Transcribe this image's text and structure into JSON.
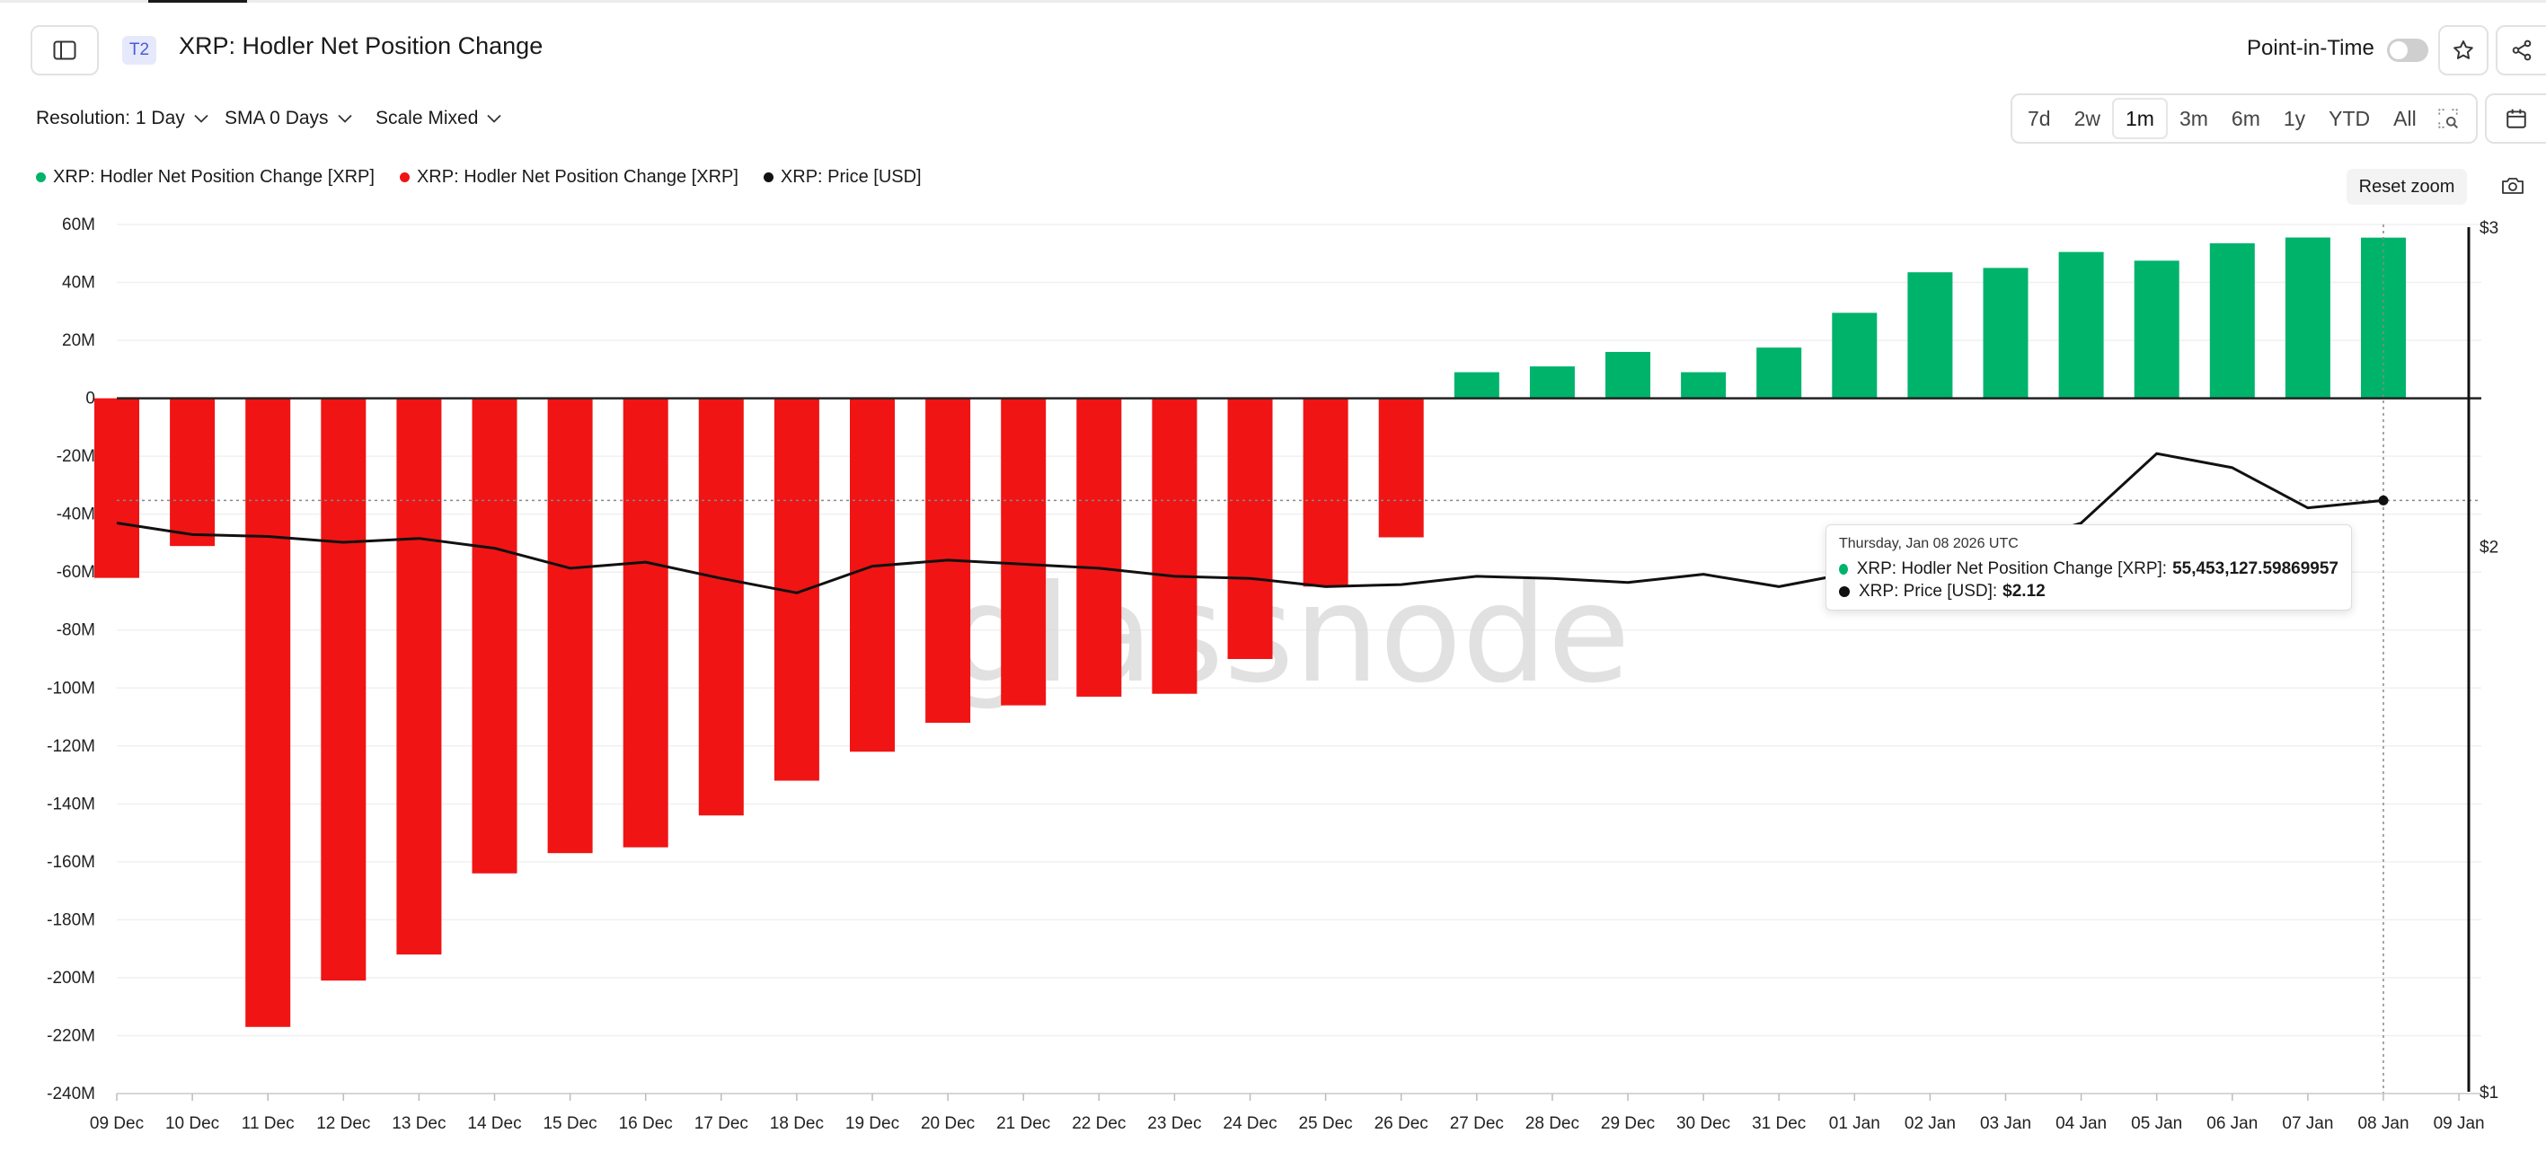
{
  "header": {
    "tier": "T2",
    "title": "XRP: Hodler Net Position Change",
    "point_in_time_label": "Point-in-Time"
  },
  "toolbar": {
    "resolution_label": "Resolution: 1 Day",
    "sma_label": "SMA 0 Days",
    "scale_label": "Scale Mixed",
    "ranges": [
      "7d",
      "2w",
      "1m",
      "3m",
      "6m",
      "1y",
      "YTD",
      "All"
    ],
    "active_range": "1m",
    "reset_zoom_label": "Reset zoom"
  },
  "colors": {
    "positive": "#00b36b",
    "negative": "#f01414",
    "price": "#111111"
  },
  "icons": [
    "sidebar-toggle-icon",
    "star-icon",
    "share-icon",
    "calendar-icon",
    "zoom-select-icon",
    "camera-icon",
    "chevron-down-icon"
  ],
  "tooltip": {
    "date": "Thursday, Jan 08 2026 UTC",
    "series1_label": "XRP: Hodler Net Position Change [XRP]:",
    "series1_value": "55,453,127.59869957",
    "series2_label": "XRP: Price [USD]:",
    "series2_value": "$2.12"
  },
  "chart_data": {
    "type": "bar",
    "watermark": "glassnode",
    "categories": [
      "09 Dec",
      "10 Dec",
      "11 Dec",
      "12 Dec",
      "13 Dec",
      "14 Dec",
      "15 Dec",
      "16 Dec",
      "17 Dec",
      "18 Dec",
      "19 Dec",
      "20 Dec",
      "21 Dec",
      "22 Dec",
      "23 Dec",
      "24 Dec",
      "25 Dec",
      "26 Dec",
      "27 Dec",
      "28 Dec",
      "29 Dec",
      "30 Dec",
      "31 Dec",
      "01 Jan",
      "02 Jan",
      "03 Jan",
      "04 Jan",
      "05 Jan",
      "06 Jan",
      "07 Jan",
      "08 Jan"
    ],
    "x_tick_labels": [
      "09 Dec",
      "10 Dec",
      "11 Dec",
      "12 Dec",
      "13 Dec",
      "14 Dec",
      "15 Dec",
      "16 Dec",
      "17 Dec",
      "18 Dec",
      "19 Dec",
      "20 Dec",
      "21 Dec",
      "22 Dec",
      "23 Dec",
      "24 Dec",
      "25 Dec",
      "26 Dec",
      "27 Dec",
      "28 Dec",
      "29 Dec",
      "30 Dec",
      "31 Dec",
      "01 Jan",
      "02 Jan",
      "03 Jan",
      "04 Jan",
      "05 Jan",
      "06 Jan",
      "07 Jan",
      "08 Jan",
      "09 Jan"
    ],
    "series": [
      {
        "name": "XRP: Hodler Net Position Change [XRP]",
        "color": "#00b36b",
        "axis": "left",
        "values": [
          null,
          null,
          null,
          null,
          null,
          null,
          null,
          null,
          null,
          null,
          null,
          null,
          null,
          null,
          null,
          null,
          null,
          null,
          9000000,
          11000000,
          16000000,
          9000000,
          17500000,
          29500000,
          43500000,
          45000000,
          50500000,
          47500000,
          53500000,
          55500000,
          55453127.59869957
        ]
      },
      {
        "name": "XRP: Hodler Net Position Change [XRP]",
        "color": "#f01414",
        "axis": "left",
        "values": [
          -62000000,
          -51000000,
          -217000000,
          -201000000,
          -192000000,
          -164000000,
          -157000000,
          -155000000,
          -144000000,
          -132000000,
          -122000000,
          -112000000,
          -106000000,
          -103000000,
          -102000000,
          -90000000,
          -65000000,
          -48000000,
          null,
          null,
          null,
          null,
          null,
          null,
          null,
          null,
          null,
          null,
          null,
          null,
          null
        ]
      },
      {
        "name": "XRP: Price [USD]",
        "color": "#111111",
        "axis": "right",
        "type": "line",
        "values": [
          2.06,
          2.03,
          2.025,
          2.01,
          2.02,
          1.995,
          1.945,
          1.96,
          1.92,
          1.885,
          1.95,
          1.965,
          1.955,
          1.945,
          1.925,
          1.92,
          1.9,
          1.905,
          1.925,
          1.92,
          1.91,
          1.93,
          1.9,
          1.935,
          1.96,
          2.0,
          2.06,
          2.25,
          2.21,
          2.1,
          2.12
        ]
      }
    ],
    "y_left": {
      "ticks": [
        60000000,
        40000000,
        20000000,
        0,
        -20000000,
        -40000000,
        -60000000,
        -80000000,
        -100000000,
        -120000000,
        -140000000,
        -160000000,
        -180000000,
        -200000000,
        -220000000,
        -240000000
      ],
      "tick_labels": [
        "60M",
        "40M",
        "20M",
        "0",
        "-20M",
        "-40M",
        "-60M",
        "-80M",
        "-100M",
        "-120M",
        "-140M",
        "-160M",
        "-180M",
        "-200M",
        "-220M",
        "-240M"
      ],
      "range": [
        -240000000,
        60000000
      ]
    },
    "y_right": {
      "scale": "log",
      "ticks": [
        3,
        2,
        1
      ],
      "tick_labels": [
        "$3",
        "$2",
        "$1"
      ],
      "range": [
        1,
        3
      ]
    },
    "legend_position": "top-left",
    "grid": true,
    "crosshair_category": "08 Jan",
    "crosshair_value": 2.12
  }
}
